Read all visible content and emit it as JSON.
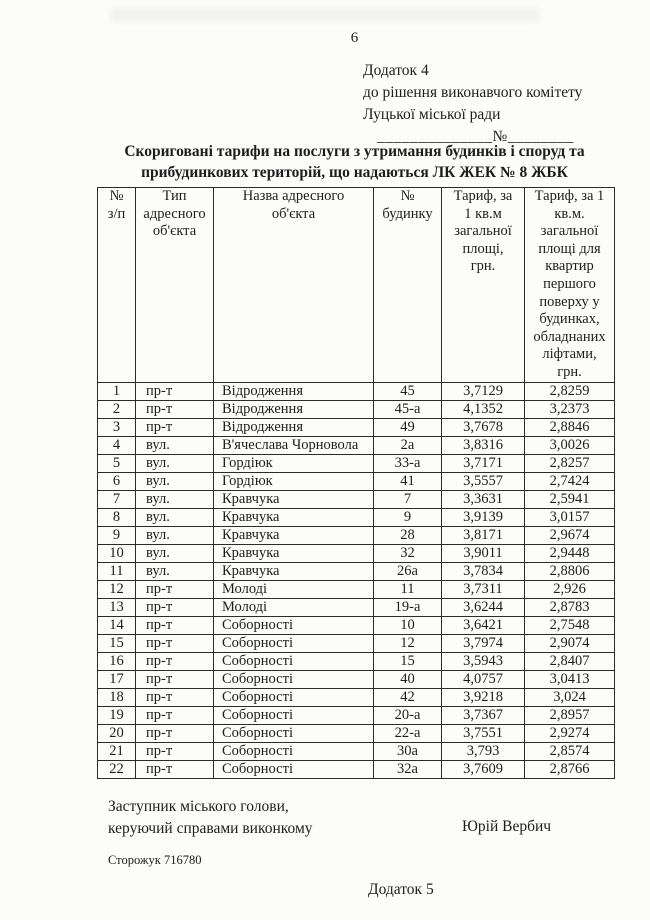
{
  "page": {
    "number": "6",
    "appendix": {
      "line1": "Додаток 4",
      "line2": "до рішення виконавчого комітету",
      "line3": "Луцької міської ради",
      "number_line": "______________№________"
    },
    "title_line1": "Скориговані тарифи на послуги з утримання будинків і споруд та",
    "title_line2": "прибудинкових територій, що надаються ЛК ЖЕК № 8 ЖБК"
  },
  "table": {
    "headers": [
      "№\nз/п",
      "Тип\nадресного\nоб'єкта",
      "Назва адресного\nоб'єкта",
      "№\nбудинку",
      "Тариф, за\n1 кв.м\nзагальної\nплощі,\nгрн.",
      "Тариф, за 1\nкв.м.\nзагальної\nплощі для\nквартир\nпершого\nповерху у\nбудинках,\nобладнаних\nліфтами,\nгрн."
    ],
    "rows": [
      [
        "1",
        "пр-т",
        "Відродження",
        "45",
        "3,7129",
        "2,8259"
      ],
      [
        "2",
        "пр-т",
        "Відродження",
        "45-а",
        "4,1352",
        "3,2373"
      ],
      [
        "3",
        "пр-т",
        "Відродження",
        "49",
        "3,7678",
        "2,8846"
      ],
      [
        "4",
        "вул.",
        "В'ячеслава Чорновола",
        "2а",
        "3,8316",
        "3,0026"
      ],
      [
        "5",
        "вул.",
        "Гордіюк",
        "33-а",
        "3,7171",
        "2,8257"
      ],
      [
        "6",
        "вул.",
        "Гордіюк",
        "41",
        "3,5557",
        "2,7424"
      ],
      [
        "7",
        "вул.",
        "Кравчука",
        "7",
        "3,3631",
        "2,5941"
      ],
      [
        "8",
        "вул.",
        "Кравчука",
        "9",
        "3,9139",
        "3,0157"
      ],
      [
        "9",
        "вул.",
        "Кравчука",
        "28",
        "3,8171",
        "2,9674"
      ],
      [
        "10",
        "вул.",
        "Кравчука",
        "32",
        "3,9011",
        "2,9448"
      ],
      [
        "11",
        "вул.",
        "Кравчука",
        "26а",
        "3,7834",
        "2,8806"
      ],
      [
        "12",
        "пр-т",
        "Молоді",
        "11",
        "3,7311",
        "2,926"
      ],
      [
        "13",
        "пр-т",
        "Молоді",
        "19-а",
        "3,6244",
        "2,8783"
      ],
      [
        "14",
        "пр-т",
        "Соборності",
        "10",
        "3,6421",
        "2,7548"
      ],
      [
        "15",
        "пр-т",
        "Соборності",
        "12",
        "3,7974",
        "2,9074"
      ],
      [
        "16",
        "пр-т",
        "Соборності",
        "15",
        "3,5943",
        "2,8407"
      ],
      [
        "17",
        "пр-т",
        "Соборності",
        "40",
        "4,0757",
        "3,0413"
      ],
      [
        "18",
        "пр-т",
        "Соборності",
        "42",
        "3,9218",
        "3,024"
      ],
      [
        "19",
        "пр-т",
        "Соборності",
        "20-а",
        "3,7367",
        "2,8957"
      ],
      [
        "20",
        "пр-т",
        "Соборності",
        "22-а",
        "3,7551",
        "2,9274"
      ],
      [
        "21",
        "пр-т",
        "Соборності",
        "30а",
        "3,793",
        "2,8574"
      ],
      [
        "22",
        "пр-т",
        "Соборності",
        "32а",
        "3,7609",
        "2,8766"
      ]
    ]
  },
  "footer": {
    "position_line1": "Заступник міського голови,",
    "position_line2": "керуючий справами виконкому",
    "signer": "Юрій Вербич",
    "executor_note": "Сторожук 716780",
    "next_appendix": "Додаток 5"
  }
}
